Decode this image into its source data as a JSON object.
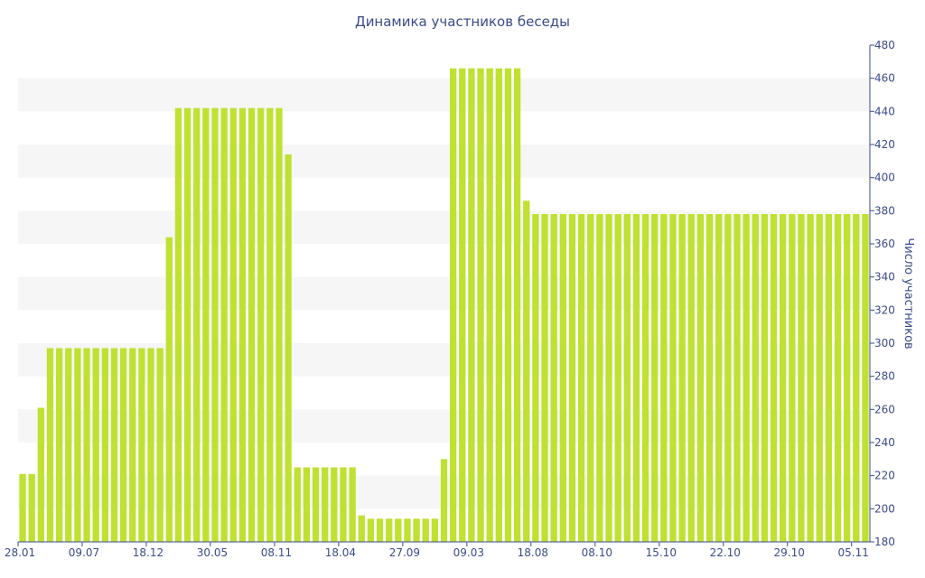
{
  "chart_data": {
    "type": "bar",
    "title": "Динамика участников беседы",
    "ylabel": "Число участников",
    "xlabel": "",
    "ylim": [
      180,
      480
    ],
    "y_ticks": [
      180,
      200,
      220,
      240,
      260,
      280,
      300,
      320,
      340,
      360,
      380,
      400,
      420,
      440,
      460,
      480
    ],
    "y_axis_side": "right",
    "grid": "alternating horizontal bands",
    "bar_color": "#bfe132",
    "band_color": "#f6f6f6",
    "text_color": "#3b4b8a",
    "x_tick_labels": [
      "28.01",
      "09.07",
      "18.12",
      "30.05",
      "08.11",
      "18.04",
      "27.09",
      "09.03",
      "18.08",
      "08.10",
      "15.10",
      "22.10",
      "29.10",
      "05.11"
    ],
    "x_tick_positions": [
      0,
      7,
      14,
      21,
      28,
      35,
      42,
      49,
      56,
      63,
      70,
      77,
      84,
      91
    ],
    "values": [
      221,
      221,
      261,
      297,
      297,
      297,
      297,
      297,
      297,
      297,
      297,
      297,
      297,
      297,
      297,
      297,
      364,
      442,
      442,
      442,
      442,
      442,
      442,
      442,
      442,
      442,
      442,
      442,
      442,
      414,
      225,
      225,
      225,
      225,
      225,
      225,
      225,
      196,
      194,
      194,
      194,
      194,
      194,
      194,
      194,
      194,
      230,
      466,
      466,
      466,
      466,
      466,
      466,
      466,
      466,
      386,
      378,
      378,
      378,
      378,
      378,
      378,
      378,
      378,
      378,
      378,
      378,
      378,
      378,
      378,
      378,
      378,
      378,
      378,
      378,
      378,
      378,
      378,
      378,
      378,
      378,
      378,
      378,
      378,
      378,
      378,
      378,
      378,
      378,
      378,
      378,
      378,
      378
    ]
  }
}
